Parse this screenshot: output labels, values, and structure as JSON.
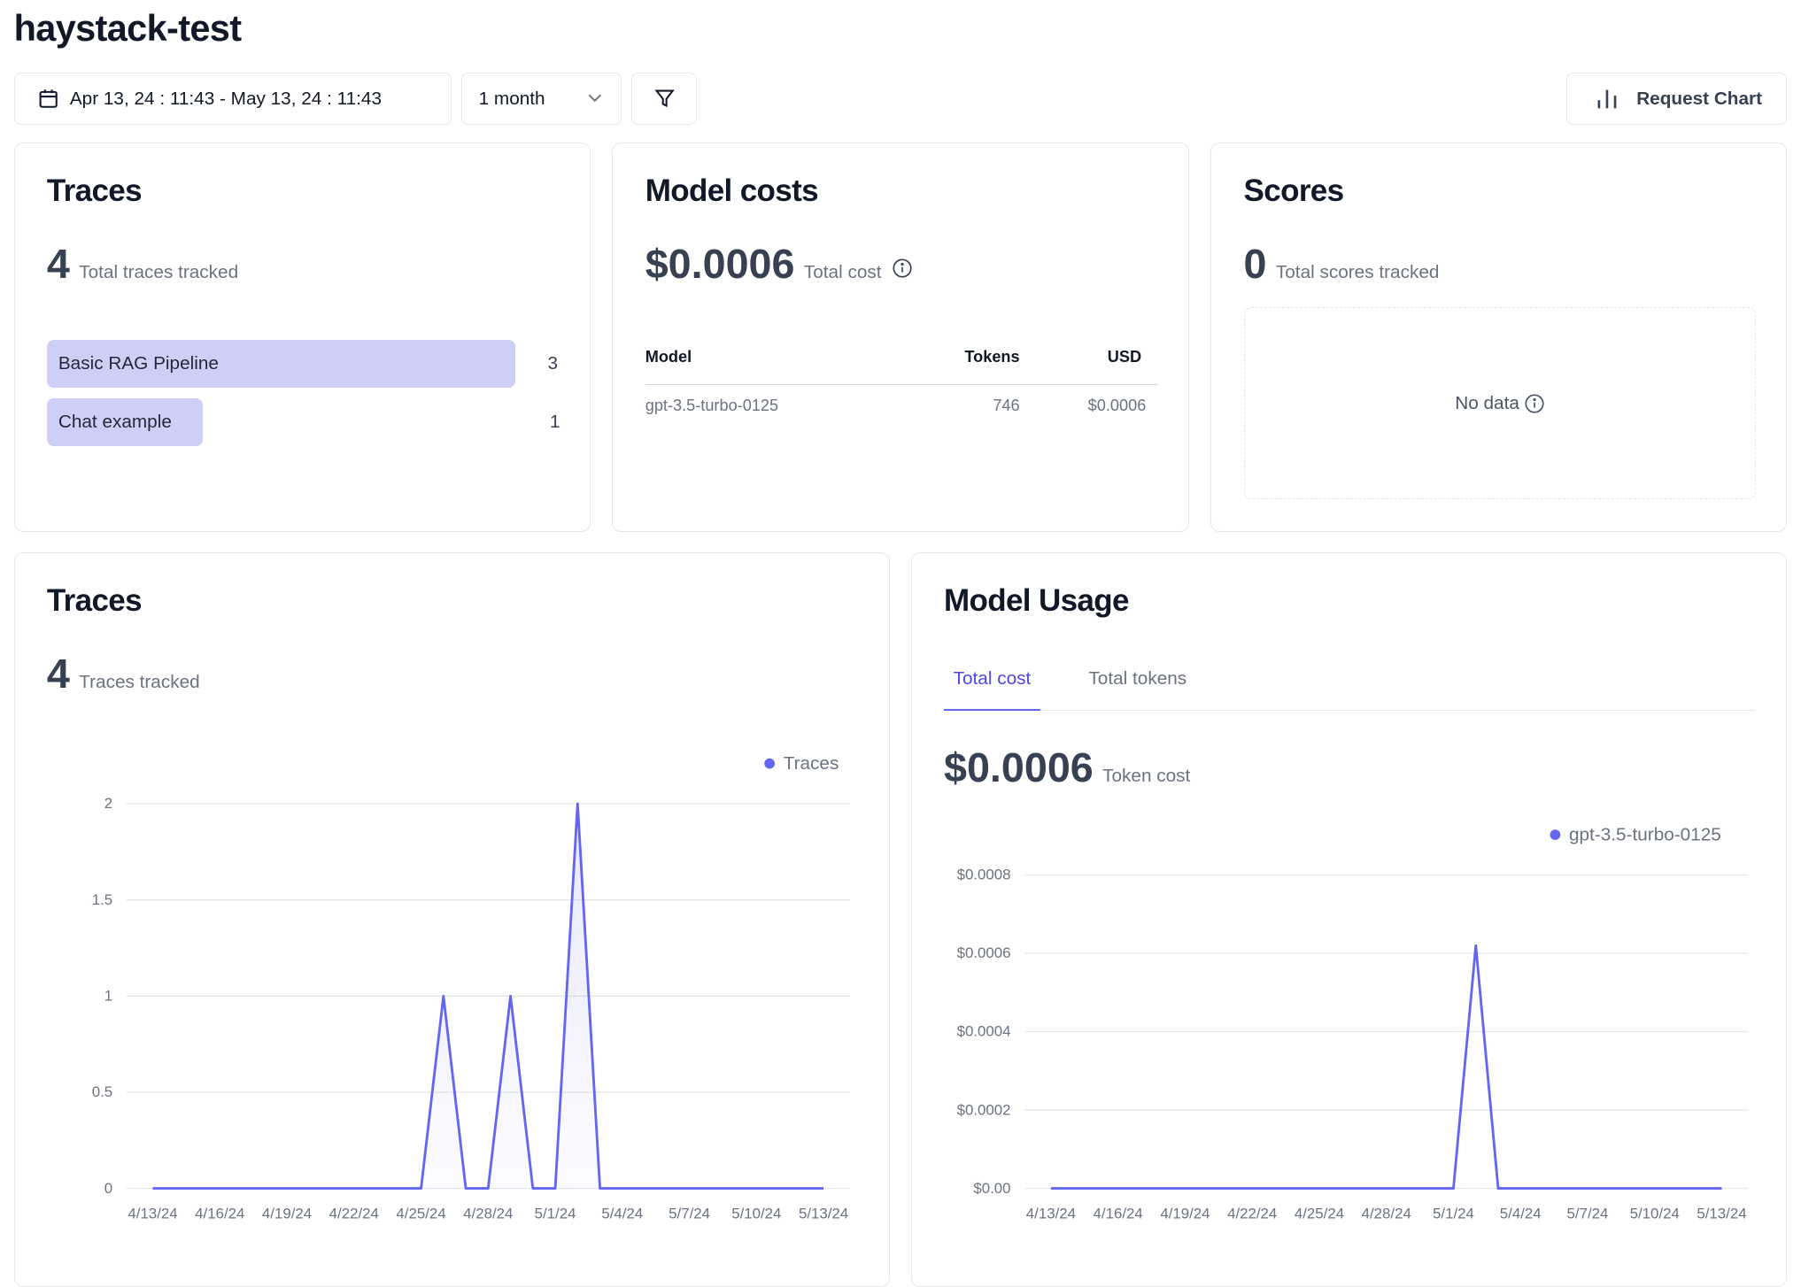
{
  "page_title": "haystack-test",
  "toolbar": {
    "date_range": "Apr 13, 24 : 11:43 - May 13, 24 : 11:43",
    "period": "1 month",
    "request_chart": "Request Chart"
  },
  "traces_card": {
    "title": "Traces",
    "count": "4",
    "count_label": "Total traces tracked",
    "items": [
      {
        "name": "Basic RAG Pipeline",
        "value": "3",
        "fraction": 1.0
      },
      {
        "name": "Chat example",
        "value": "1",
        "fraction": 0.333
      }
    ]
  },
  "costs_card": {
    "title": "Model costs",
    "total": "$0.0006",
    "total_label": "Total cost",
    "columns": [
      "Model",
      "Tokens",
      "USD"
    ],
    "rows": [
      [
        "gpt-3.5-turbo-0125",
        "746",
        "$0.0006"
      ]
    ]
  },
  "scores_card": {
    "title": "Scores",
    "count": "0",
    "count_label": "Total scores tracked",
    "empty": "No data"
  },
  "traces_chart_card": {
    "title": "Traces",
    "count": "4",
    "count_label": "Traces tracked"
  },
  "usage_card": {
    "title": "Model Usage",
    "tabs": [
      "Total cost",
      "Total tokens"
    ],
    "active_tab": 0,
    "total": "$0.0006",
    "total_label": "Token cost"
  },
  "colors": {
    "accent": "#6366f1",
    "bar": "#cdcff7"
  },
  "chart_data": [
    {
      "type": "area",
      "x": [
        "4/13/24",
        "4/14/24",
        "4/15/24",
        "4/16/24",
        "4/17/24",
        "4/18/24",
        "4/19/24",
        "4/20/24",
        "4/21/24",
        "4/22/24",
        "4/23/24",
        "4/24/24",
        "4/25/24",
        "4/26/24",
        "4/27/24",
        "4/28/24",
        "4/29/24",
        "4/30/24",
        "5/1/24",
        "5/2/24",
        "5/3/24",
        "5/4/24",
        "5/5/24",
        "5/6/24",
        "5/7/24",
        "5/8/24",
        "5/9/24",
        "5/10/24",
        "5/11/24",
        "5/12/24",
        "5/13/24"
      ],
      "series": [
        {
          "name": "Traces",
          "values": [
            0,
            0,
            0,
            0,
            0,
            0,
            0,
            0,
            0,
            0,
            0,
            0,
            0,
            1,
            0,
            0,
            1,
            0,
            0,
            2,
            0,
            0,
            0,
            0,
            0,
            0,
            0,
            0,
            0,
            0,
            0
          ]
        }
      ],
      "xticks": [
        "4/13/24",
        "4/16/24",
        "4/19/24",
        "4/22/24",
        "4/25/24",
        "4/28/24",
        "5/1/24",
        "5/4/24",
        "5/7/24",
        "5/10/24",
        "5/13/24"
      ],
      "yticks": [
        "0",
        "0.5",
        "1",
        "1.5",
        "2"
      ],
      "ylim": [
        0,
        2
      ],
      "grid": true,
      "legend": "top-right"
    },
    {
      "type": "line",
      "x": [
        "4/13/24",
        "4/14/24",
        "4/15/24",
        "4/16/24",
        "4/17/24",
        "4/18/24",
        "4/19/24",
        "4/20/24",
        "4/21/24",
        "4/22/24",
        "4/23/24",
        "4/24/24",
        "4/25/24",
        "4/26/24",
        "4/27/24",
        "4/28/24",
        "4/29/24",
        "4/30/24",
        "5/1/24",
        "5/2/24",
        "5/3/24",
        "5/4/24",
        "5/5/24",
        "5/6/24",
        "5/7/24",
        "5/8/24",
        "5/9/24",
        "5/10/24",
        "5/11/24",
        "5/12/24",
        "5/13/24"
      ],
      "series": [
        {
          "name": "gpt-3.5-turbo-0125",
          "values": [
            0,
            0,
            0,
            0,
            0,
            0,
            0,
            0,
            0,
            0,
            0,
            0,
            0,
            0,
            0,
            0,
            0,
            0,
            0,
            0.00062,
            0,
            0,
            0,
            0,
            0,
            0,
            0,
            0,
            0,
            0,
            0
          ]
        }
      ],
      "xticks": [
        "4/13/24",
        "4/16/24",
        "4/19/24",
        "4/22/24",
        "4/25/24",
        "4/28/24",
        "5/1/24",
        "5/4/24",
        "5/7/24",
        "5/10/24",
        "5/13/24"
      ],
      "yticks": [
        "$0.00",
        "$0.0002",
        "$0.0004",
        "$0.0006",
        "$0.0008"
      ],
      "ylim": [
        0,
        0.0008
      ],
      "grid": true,
      "legend": "top-right"
    }
  ]
}
